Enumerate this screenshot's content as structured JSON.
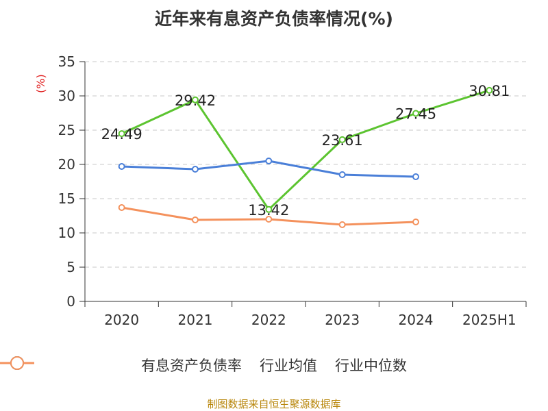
{
  "chart_data": {
    "type": "line",
    "title": "近年来有息资产负债率情况(%)",
    "y_unit_label": "(%)",
    "categories": [
      "2020",
      "2021",
      "2022",
      "2023",
      "2024",
      "2025H1"
    ],
    "ylim": [
      0,
      35
    ],
    "yticks": [
      0,
      5,
      10,
      15,
      20,
      25,
      30,
      35
    ],
    "grid": true,
    "legend_position": "bottom",
    "series": [
      {
        "name": "有息资产负债率",
        "color": "#5cc430",
        "labeled": true,
        "values": [
          24.49,
          29.42,
          13.42,
          23.61,
          27.45,
          30.81
        ],
        "labels": [
          "24.49",
          "29.42",
          "13.42",
          "23.61",
          "27.45",
          "30.81"
        ]
      },
      {
        "name": "行业均值",
        "color": "#4a7fd8",
        "labeled": false,
        "values": [
          19.7,
          19.3,
          20.5,
          18.5,
          18.2,
          null
        ]
      },
      {
        "name": "行业中位数",
        "color": "#f4915c",
        "labeled": false,
        "values": [
          13.7,
          11.9,
          12.0,
          11.2,
          11.6,
          null
        ]
      }
    ],
    "source": "制图数据来自恒生聚源数据库"
  }
}
